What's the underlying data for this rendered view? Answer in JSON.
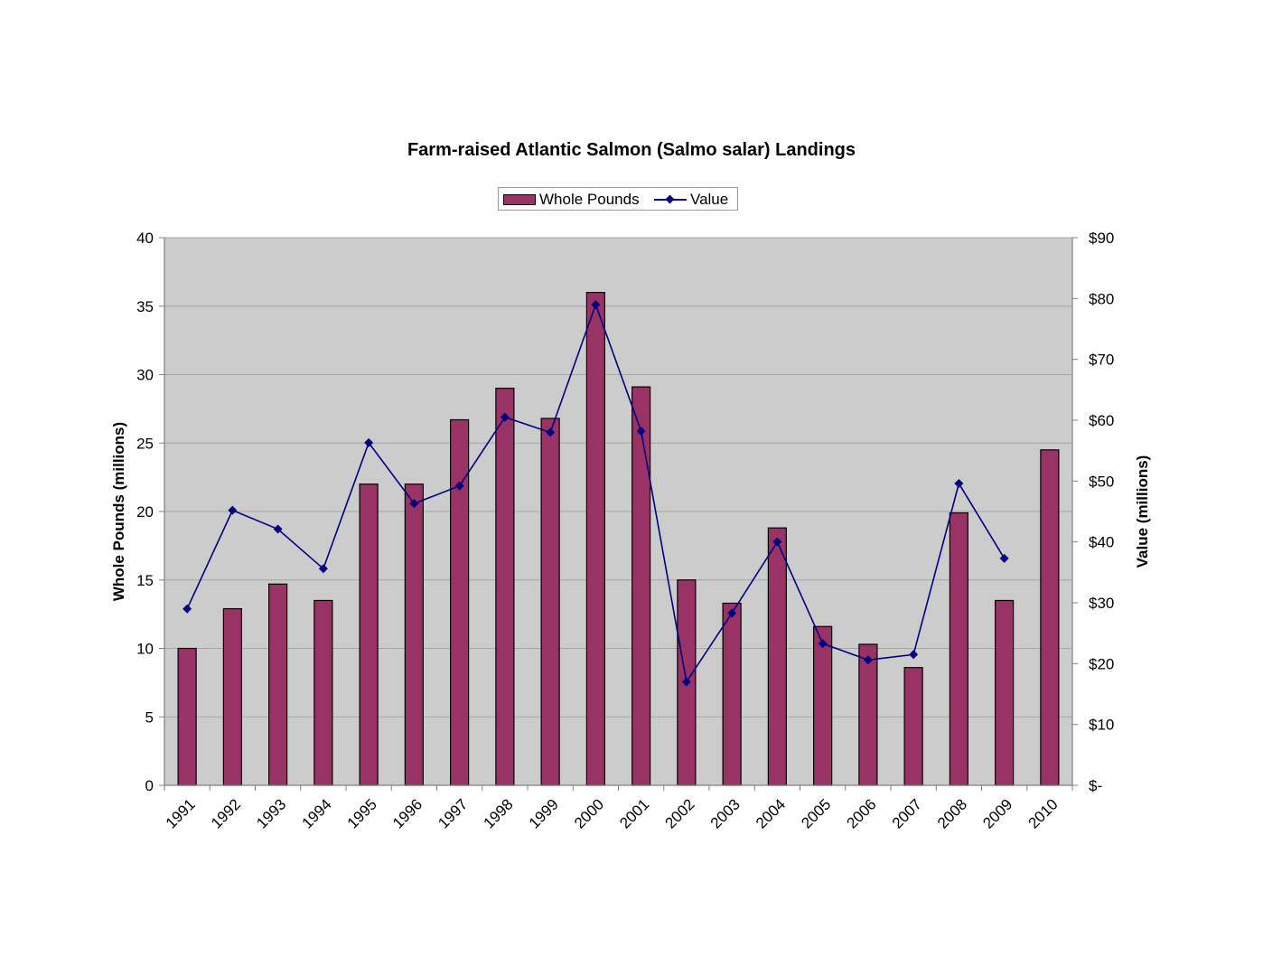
{
  "chart_data": {
    "type": "bar",
    "title": "Farm-raised Atlantic Salmon (Salmo salar) Landings",
    "categories": [
      "1991",
      "1992",
      "1993",
      "1994",
      "1995",
      "1996",
      "1997",
      "1998",
      "1999",
      "2000",
      "2001",
      "2002",
      "2003",
      "2004",
      "2005",
      "2006",
      "2007",
      "2008",
      "2009",
      "2010"
    ],
    "series": [
      {
        "name": "Whole Pounds",
        "type": "bar",
        "axis": "left",
        "color": "#993366",
        "values": [
          10.0,
          12.9,
          14.7,
          13.5,
          22.0,
          22.0,
          26.7,
          29.0,
          26.8,
          36.0,
          29.1,
          15.0,
          13.3,
          18.8,
          11.6,
          10.3,
          8.6,
          19.9,
          13.5,
          24.5
        ]
      },
      {
        "name": "Value",
        "type": "line",
        "axis": "right",
        "color": "#000080",
        "values": [
          29.0,
          45.2,
          42.1,
          35.6,
          56.3,
          46.3,
          49.2,
          60.5,
          58.0,
          79.0,
          58.2,
          17.0,
          28.3,
          40.0,
          23.3,
          20.6,
          21.5,
          49.6,
          37.3,
          null
        ]
      }
    ],
    "ylabel": "Whole Pounds (millions)",
    "ylim": [
      0,
      40
    ],
    "yticks": [
      0,
      5,
      10,
      15,
      20,
      25,
      30,
      35,
      40
    ],
    "y2label": "Value (millions)",
    "y2lim": [
      0,
      90
    ],
    "y2ticks": [
      "$-",
      "$10",
      "$20",
      "$30",
      "$40",
      "$50",
      "$60",
      "$70",
      "$80",
      "$90"
    ],
    "grid": true,
    "legend": "top-center",
    "plot_background": "#cccccc"
  }
}
